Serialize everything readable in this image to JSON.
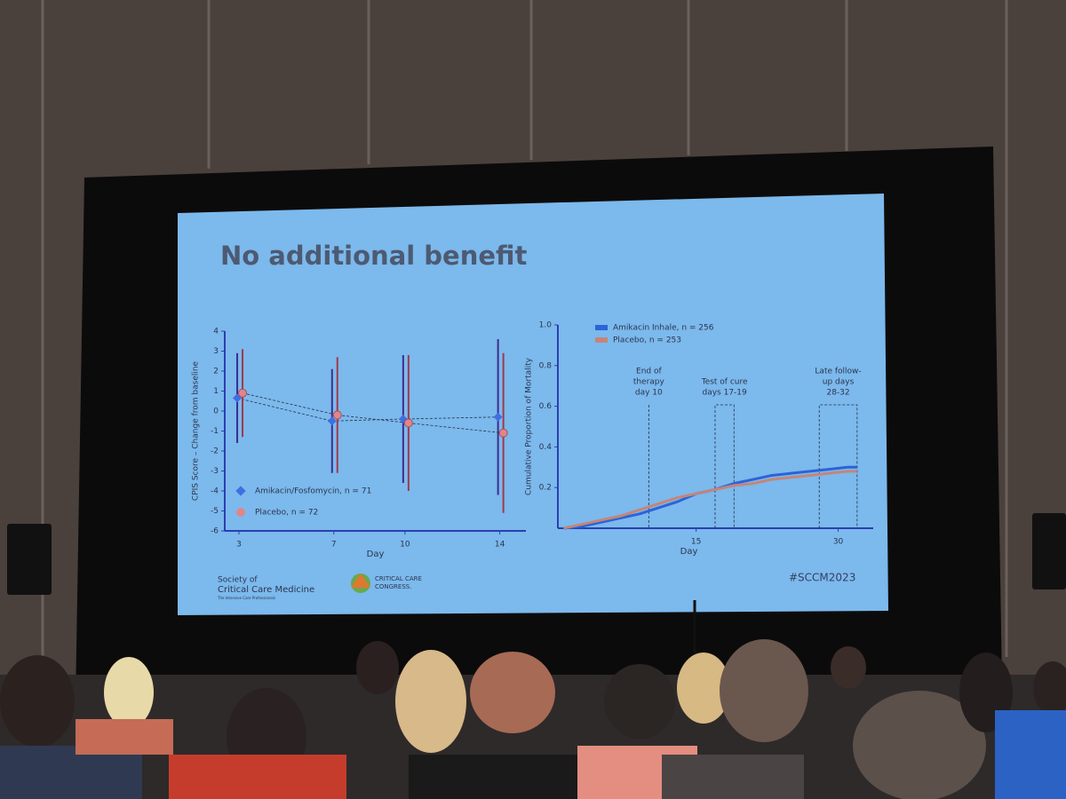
{
  "slide": {
    "title": "No additional benefit",
    "hashtag": "#SCCM2023",
    "logos": [
      "Society of",
      "Critical Care Medicine",
      "The Intensive Care Professionals",
      "CRITICAL CARE",
      "CONGRESS."
    ]
  },
  "chart_data": [
    {
      "type": "errorbar",
      "x": [
        3,
        7,
        10,
        14
      ],
      "xlim": [
        2.4,
        15.1
      ],
      "xticks": [
        3,
        7,
        10,
        14
      ],
      "ylim": [
        -6,
        4
      ],
      "yticks": [
        -6,
        -5,
        -4,
        -3,
        -2,
        -1,
        0,
        1,
        2,
        3,
        4
      ],
      "xlabel": "Day",
      "ylabel": "CPIS Score – Change from baseline",
      "series": [
        {
          "name": "Amikacin/Fosfomycin, n = 71",
          "color": "#3f6fe0",
          "values": [
            0.65,
            -0.5,
            -0.4,
            -0.3
          ],
          "errors": [
            2.25,
            2.6,
            3.2,
            3.9
          ]
        },
        {
          "name": "Placebo, n = 72",
          "color": "#e0868a",
          "values": [
            0.9,
            -0.2,
            -0.6,
            -1.1
          ],
          "errors": [
            2.2,
            2.9,
            3.4,
            4.0
          ]
        }
      ]
    },
    {
      "type": "line",
      "x": [
        1,
        3,
        5,
        7,
        9,
        11,
        13,
        15,
        17,
        19,
        21,
        23,
        25,
        27,
        29,
        31,
        32
      ],
      "xlim": [
        0.4,
        33.7
      ],
      "xticks": [
        15,
        30
      ],
      "ylim": [
        0,
        1
      ],
      "yticks": [
        0.2,
        0.4,
        0.6,
        0.8,
        {
          "value": 1,
          "label": "1.0"
        }
      ],
      "xlabel": "Day",
      "ylabel": "Cumulative Proportion of Mortality",
      "series": [
        {
          "name": "Amikacin Inhale, n = 256",
          "color": "#2c63d8",
          "values": [
            0,
            0.01,
            0.03,
            0.05,
            0.07,
            0.1,
            0.13,
            0.17,
            0.19,
            0.22,
            0.24,
            0.26,
            0.27,
            0.28,
            0.29,
            0.3,
            0.3
          ]
        },
        {
          "name": "Placebo, n = 253",
          "color": "#c4857a",
          "values": [
            0,
            0.02,
            0.04,
            0.06,
            0.09,
            0.12,
            0.15,
            0.17,
            0.19,
            0.21,
            0.22,
            0.24,
            0.25,
            0.26,
            0.27,
            0.28,
            0.28
          ]
        }
      ],
      "annotations": [
        {
          "lines": [
            "End of",
            "therapy",
            "day 10"
          ],
          "x": [
            10,
            10
          ]
        },
        {
          "lines": [
            "Test of cure",
            "days 17-19"
          ],
          "x": [
            17,
            19
          ]
        },
        {
          "lines": [
            "Late follow-",
            "up days",
            "28-32"
          ],
          "x": [
            28,
            32
          ]
        }
      ]
    }
  ]
}
